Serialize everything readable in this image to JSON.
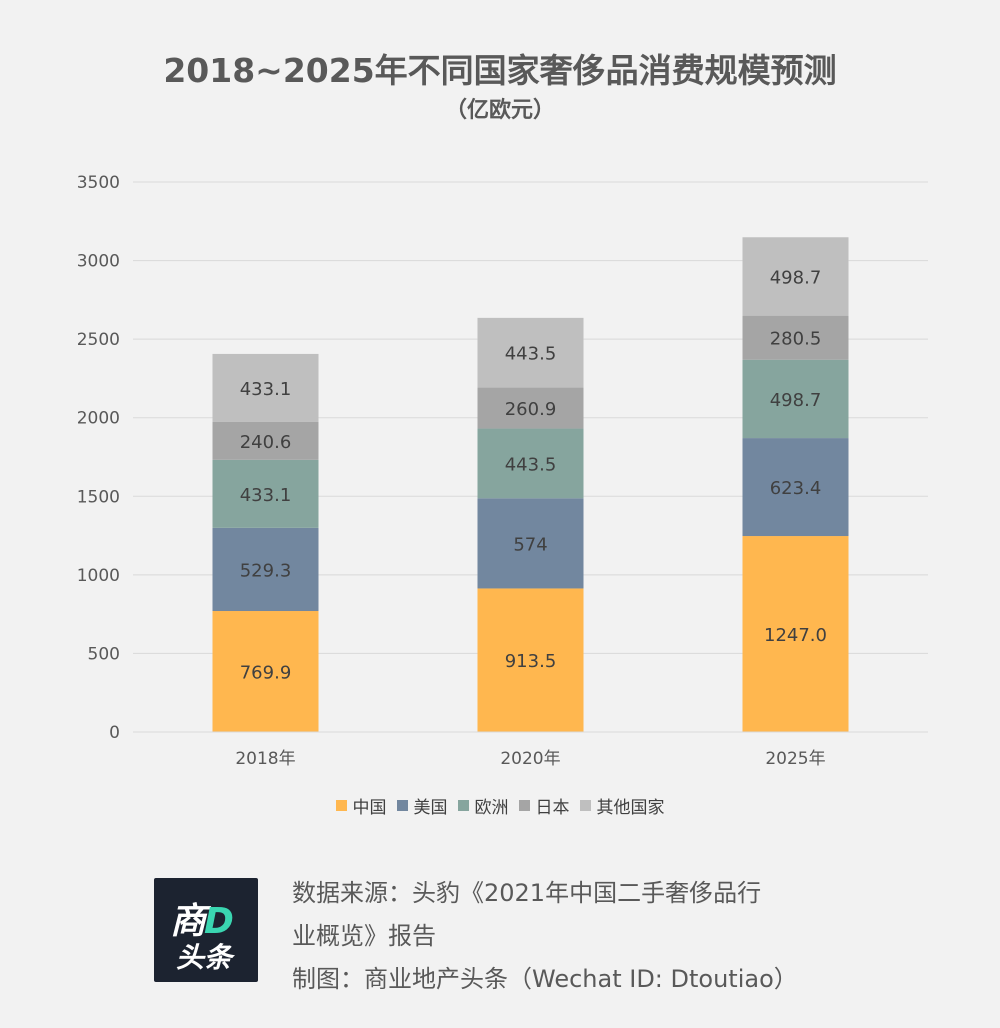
{
  "header": {
    "title": "2018~2025年不同国家奢侈品消费规模预测",
    "subtitle": "（亿欧元）"
  },
  "chart_data": {
    "type": "bar",
    "stacked": true,
    "categories": [
      "2018年",
      "2020年",
      "2025年"
    ],
    "series": [
      {
        "name": "中国",
        "color": "#ffb74f",
        "values": [
          769.9,
          913.5,
          1247.0
        ],
        "labels": [
          "769.9",
          "913.5",
          "1247.0"
        ]
      },
      {
        "name": "美国",
        "color": "#72879f",
        "values": [
          529.3,
          574,
          623.4
        ],
        "labels": [
          "529.3",
          "574",
          "623.4"
        ]
      },
      {
        "name": "欧洲",
        "color": "#86a59e",
        "values": [
          433.1,
          443.5,
          498.7
        ],
        "labels": [
          "433.1",
          "443.5",
          "498.7"
        ]
      },
      {
        "name": "日本",
        "color": "#a5a5a5",
        "values": [
          240.6,
          260.9,
          280.5
        ],
        "labels": [
          "240.6",
          "260.9",
          "280.5"
        ]
      },
      {
        "name": "其他国家",
        "color": "#bfbfbf",
        "values": [
          433.1,
          443.5,
          498.7
        ],
        "labels": [
          "433.1",
          "443.5",
          "498.7"
        ]
      }
    ],
    "ylim": [
      0,
      3500
    ],
    "yticks": [
      0,
      500,
      1000,
      1500,
      2000,
      2500,
      3000,
      3500
    ],
    "grid": true,
    "legend_position": "bottom"
  },
  "footer": {
    "logo_top": "商",
    "logo_accent": "D",
    "logo_bottom": "头条",
    "source_line1": "数据来源：头豹《2021年中国二手奢侈品行",
    "source_line2": "业概览》报告",
    "maker_line": "制图：商业地产头条（Wechat ID: Dtoutiao）"
  }
}
